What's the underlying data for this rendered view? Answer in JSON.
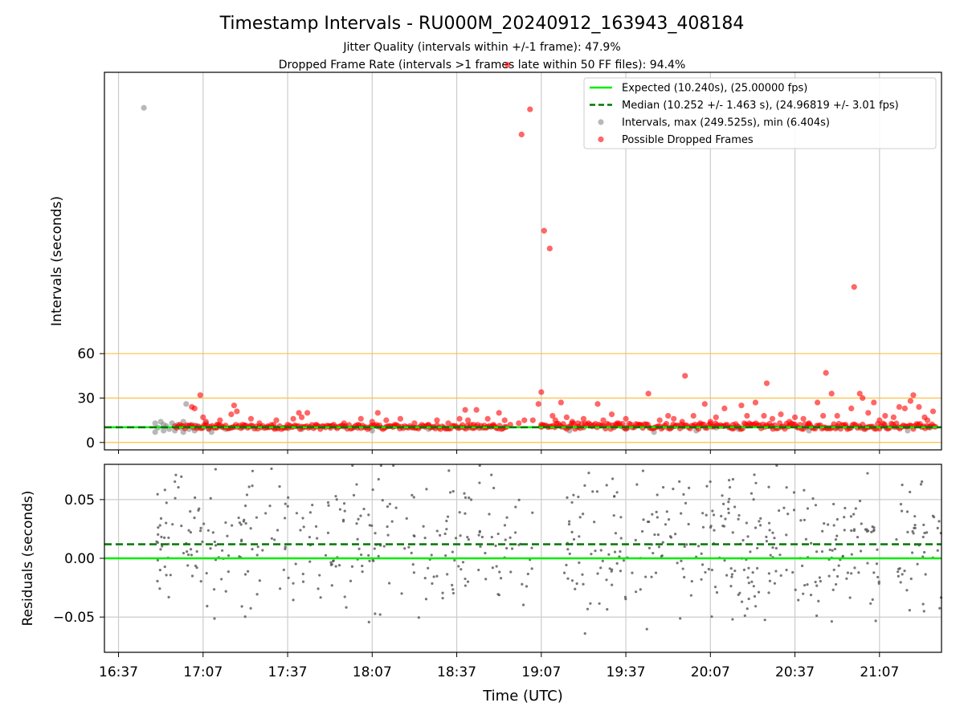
{
  "title": "Timestamp Intervals - RU000M_20240912_163943_408184",
  "subtitle_1": "Jitter Quality (intervals within +/-1 frame): 47.9%",
  "subtitle_2": "Dropped Frame Rate (intervals >1 frames late within 50 FF files): 94.4%",
  "colors": {
    "expected": "#00ee00",
    "median": "#007700",
    "intervals": "#888888",
    "dropped": "#ff0000",
    "thresholds": "#ffc040",
    "grid": "#cccccc"
  },
  "chart_data": [
    {
      "type": "scatter",
      "panel": "intervals",
      "ylabel": "Intervals (seconds)",
      "xlabel": "",
      "x_unit": "minutes after 16:37 UTC",
      "xlim": [
        -5,
        292
      ],
      "ylim": [
        -5,
        250
      ],
      "y_ticks": [
        0,
        30,
        60
      ],
      "x_ticks_vertical_grid": [
        0,
        30,
        60,
        90,
        120,
        150,
        180,
        210,
        240,
        270
      ],
      "threshold_lines": [
        0,
        30,
        60
      ],
      "expected_value": 10.24,
      "median_value": 10.252,
      "legend": [
        {
          "label": "Expected (10.240s), (25.00000 fps)",
          "kind": "solid-line"
        },
        {
          "label": "Median (10.252 +/- 1.463 s), (24.96819 +/- 3.01 fps)",
          "kind": "dashed-line"
        },
        {
          "label": "Intervals, max (249.525s), min (6.404s)",
          "kind": "gray-dot"
        },
        {
          "label": "Possible Dropped Frames",
          "kind": "red-dot"
        }
      ],
      "legend_position": "upper right",
      "series": [
        {
          "name": "Intervals, max (249.525s), min (6.404s)",
          "points": [
            [
              9,
              226
            ],
            [
              13,
              7
            ],
            [
              13,
              13
            ],
            [
              14,
              10
            ],
            [
              15,
              14
            ],
            [
              16,
              8
            ],
            [
              16,
              12
            ],
            [
              17,
              11
            ],
            [
              18,
              9
            ],
            [
              19,
              13
            ],
            [
              20,
              8
            ],
            [
              21,
              12
            ],
            [
              22,
              10
            ],
            [
              23,
              7
            ],
            [
              23,
              14
            ],
            [
              24,
              26
            ],
            [
              25,
              9
            ],
            [
              26,
              12
            ],
            [
              27,
              8
            ],
            [
              28,
              11
            ],
            [
              30,
              10
            ],
            [
              31,
              13
            ],
            [
              32,
              9
            ],
            [
              33,
              7
            ],
            [
              35,
              12
            ],
            [
              38,
              9
            ],
            [
              45,
              11
            ],
            [
              55,
              10
            ],
            [
              65,
              9
            ],
            [
              75,
              11
            ],
            [
              90,
              8
            ],
            [
              110,
              9
            ],
            [
              130,
              10
            ],
            [
              150,
              11
            ],
            [
              160,
              8
            ],
            [
              180,
              9
            ],
            [
              190,
              7
            ],
            [
              196,
              10
            ],
            [
              205,
              8
            ],
            [
              212,
              10
            ],
            [
              220,
              9
            ],
            [
              232,
              11
            ],
            [
              245,
              8
            ],
            [
              255,
              10
            ],
            [
              265,
              9
            ],
            [
              272,
              11
            ],
            [
              280,
              8
            ],
            [
              288,
              10
            ]
          ]
        },
        {
          "name": "Possible Dropped Frames",
          "points": [
            [
              26,
              24
            ],
            [
              27,
              23
            ],
            [
              29,
              32
            ],
            [
              30,
              17
            ],
            [
              31,
              14
            ],
            [
              35,
              12
            ],
            [
              36,
              15
            ],
            [
              40,
              19
            ],
            [
              41,
              25
            ],
            [
              42,
              21
            ],
            [
              44,
              12
            ],
            [
              47,
              16
            ],
            [
              50,
              13
            ],
            [
              53,
              11
            ],
            [
              55,
              12
            ],
            [
              56,
              15
            ],
            [
              60,
              12
            ],
            [
              62,
              16
            ],
            [
              64,
              20
            ],
            [
              65,
              17
            ],
            [
              67,
              20
            ],
            [
              70,
              12
            ],
            [
              75,
              11
            ],
            [
              80,
              13
            ],
            [
              85,
              12
            ],
            [
              86,
              16
            ],
            [
              90,
              14
            ],
            [
              92,
              20
            ],
            [
              95,
              15
            ],
            [
              98,
              12
            ],
            [
              100,
              16
            ],
            [
              105,
              13
            ],
            [
              110,
              12
            ],
            [
              113,
              15
            ],
            [
              117,
              13
            ],
            [
              121,
              16
            ],
            [
              123,
              22
            ],
            [
              124,
              15
            ],
            [
              126,
              12
            ],
            [
              127,
              22
            ],
            [
              131,
              16
            ],
            [
              133,
              12
            ],
            [
              135,
              20
            ],
            [
              137,
              15
            ],
            [
              139,
              12
            ],
            [
              142,
              13
            ],
            [
              144,
              15
            ],
            [
              147,
              15
            ],
            [
              150,
              12
            ],
            [
              138,
              255
            ],
            [
              143,
              208
            ],
            [
              146,
              225
            ],
            [
              151,
              143
            ],
            [
              153,
              131
            ],
            [
              150,
              34
            ],
            [
              149,
              26
            ],
            [
              154,
              18
            ],
            [
              155,
              15
            ],
            [
              157,
              27
            ],
            [
              159,
              17
            ],
            [
              161,
              14
            ],
            [
              163,
              13
            ],
            [
              165,
              16
            ],
            [
              170,
              26
            ],
            [
              172,
              15
            ],
            [
              175,
              19
            ],
            [
              177,
              13
            ],
            [
              180,
              16
            ],
            [
              185,
              12
            ],
            [
              188,
              33
            ],
            [
              192,
              15
            ],
            [
              195,
              18
            ],
            [
              197,
              16
            ],
            [
              200,
              14
            ],
            [
              201,
              45
            ],
            [
              204,
              18
            ],
            [
              206,
              12
            ],
            [
              208,
              26
            ],
            [
              210,
              14
            ],
            [
              212,
              17
            ],
            [
              215,
              23
            ],
            [
              218,
              12
            ],
            [
              221,
              25
            ],
            [
              223,
              18
            ],
            [
              226,
              27
            ],
            [
              229,
              18
            ],
            [
              230,
              40
            ],
            [
              232,
              16
            ],
            [
              235,
              19
            ],
            [
              238,
              14
            ],
            [
              240,
              17
            ],
            [
              243,
              16
            ],
            [
              245,
              13
            ],
            [
              248,
              27
            ],
            [
              250,
              18
            ],
            [
              251,
              47
            ],
            [
              253,
              33
            ],
            [
              255,
              18
            ],
            [
              258,
              12
            ],
            [
              260,
              23
            ],
            [
              261,
              105
            ],
            [
              263,
              33
            ],
            [
              264,
              30
            ],
            [
              266,
              20
            ],
            [
              268,
              27
            ],
            [
              270,
              15
            ],
            [
              272,
              18
            ],
            [
              275,
              17
            ],
            [
              277,
              24
            ],
            [
              279,
              23
            ],
            [
              281,
              28
            ],
            [
              282,
              32
            ],
            [
              284,
              24
            ],
            [
              286,
              17
            ],
            [
              287,
              15
            ],
            [
              289,
              21
            ]
          ],
          "dense_band": [
            {
              "x_from": 20,
              "x_to": 138,
              "y_from": 9,
              "y_to": 12
            },
            {
              "x_from": 150,
              "x_to": 290,
              "y_from": 9,
              "y_to": 13
            }
          ]
        }
      ]
    },
    {
      "type": "scatter",
      "panel": "residuals",
      "ylabel": "Residuals (seconds)",
      "xlabel": "Time (UTC)",
      "x_unit": "minutes after 16:37 UTC",
      "xlim": [
        -5,
        292
      ],
      "ylim": [
        -0.08,
        0.08
      ],
      "y_ticks": [
        -0.05,
        0.0,
        0.05
      ],
      "y_tick_labels": [
        "−0.05",
        "0.00",
        "0.05"
      ],
      "x_ticks": [
        0,
        30,
        60,
        90,
        120,
        150,
        180,
        210,
        240,
        270
      ],
      "x_tick_labels": [
        "16:37",
        "17:07",
        "17:37",
        "18:07",
        "18:37",
        "19:07",
        "19:37",
        "20:07",
        "20:37",
        "21:07"
      ],
      "expected_residual": 0.0,
      "median_residual": 0.012,
      "grid": true,
      "series": [
        {
          "name": "Residuals",
          "gaps": [
            [
              147,
              158
            ],
            [
              270,
              276
            ]
          ],
          "x_range": [
            13,
            292
          ],
          "n_points": 700
        }
      ]
    }
  ]
}
